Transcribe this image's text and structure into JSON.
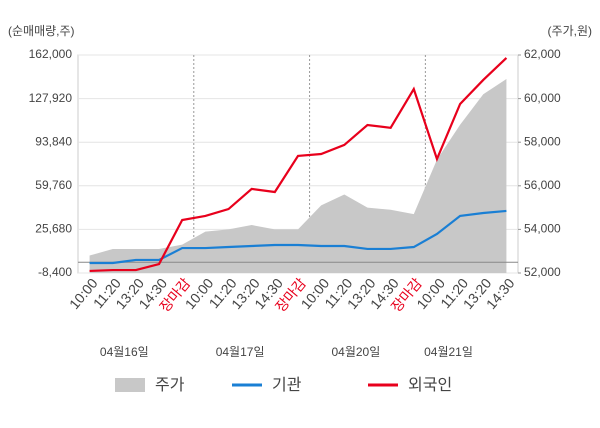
{
  "chart_data": {
    "type": "line",
    "y_label": "(순매매량,주)",
    "y2_label": "(주가,원)",
    "categories": [
      "10:00",
      "11:20",
      "13:20",
      "14:30",
      "장마감",
      "10:00",
      "11:20",
      "13:20",
      "14:30",
      "장마감",
      "10:00",
      "11:20",
      "13:20",
      "14:30",
      "장마감",
      "10:00",
      "11:20",
      "13:20",
      "14:30"
    ],
    "dates": [
      "04월16일",
      "04월17일",
      "04월20일",
      "04월21일"
    ],
    "highlight": {
      "label": "장마감",
      "color": "#e8001c"
    },
    "series": [
      {
        "name": "주가",
        "color": "#c8c8c8",
        "axis": "y2",
        "kind": "area",
        "values": [
          52800,
          53100,
          53100,
          53100,
          53300,
          53900,
          54000,
          54200,
          54000,
          54000,
          55100,
          55600,
          55000,
          54900,
          54700,
          57200,
          58800,
          60200,
          60900
        ]
      },
      {
        "name": "기관",
        "color": "#1a7fd4",
        "values": [
          -600,
          -600,
          1800,
          1800,
          11100,
          11100,
          11900,
          12700,
          13500,
          13500,
          12700,
          12700,
          10400,
          10400,
          11900,
          22100,
          36200,
          38500,
          40100
        ]
      },
      {
        "name": "외국인",
        "color": "#e8001c",
        "values": [
          -6800,
          -6100,
          -6100,
          -1400,
          33000,
          36200,
          41600,
          57300,
          54900,
          83100,
          84600,
          91700,
          107300,
          105100,
          135400,
          80700,
          123700,
          142500,
          159700
        ]
      }
    ],
    "ylim": [
      -8400,
      162000
    ],
    "yticks": [
      {
        "value": -8400,
        "label": "-8,400"
      },
      {
        "value": 25680,
        "label": "25,680"
      },
      {
        "value": 59760,
        "label": "59,760"
      },
      {
        "value": 93840,
        "label": "93,840"
      },
      {
        "value": 127920,
        "label": "127,920"
      },
      {
        "value": 162000,
        "label": "162,000"
      }
    ],
    "y2lim": [
      52000,
      62000
    ],
    "y2ticks": [
      {
        "value": 52000,
        "label": "52,000"
      },
      {
        "value": 54000,
        "label": "54,000"
      },
      {
        "value": 56000,
        "label": "56,000"
      },
      {
        "value": 58000,
        "label": "58,000"
      },
      {
        "value": 60000,
        "label": "60,000"
      },
      {
        "value": 62000,
        "label": "62,000"
      }
    ],
    "grid": true
  }
}
